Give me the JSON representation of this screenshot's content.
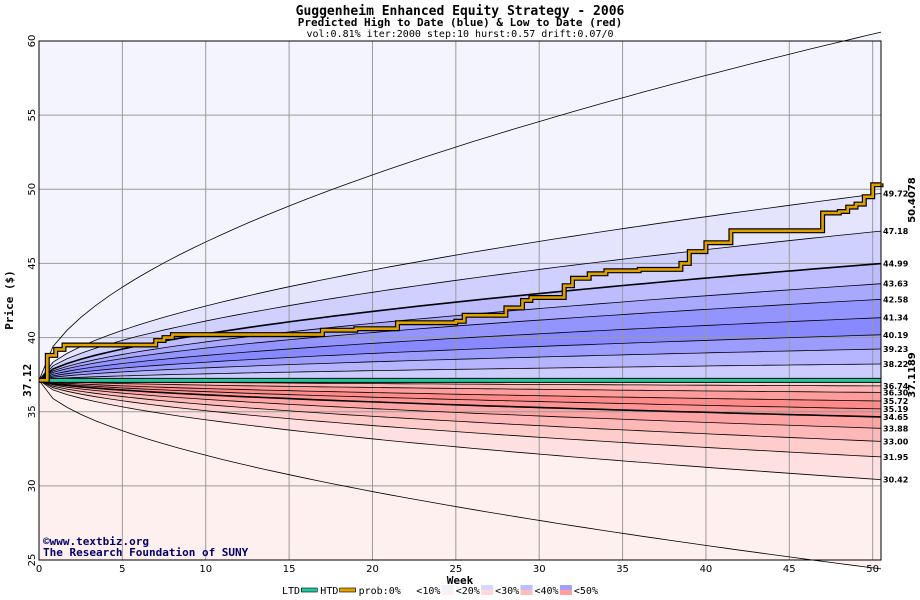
{
  "chart_data": {
    "type": "area",
    "title": "Guggenheim Enhanced Equity Strategy - 2006",
    "subtitle": "Predicted High to Date (blue) &  Low to Date (red)",
    "params": "vol:0.81% iter:2000 step:10 hurst:0.57 drift:0.07/0",
    "xlabel": "Week",
    "ylabel": "Price ($)",
    "xlim": [
      0,
      50.5
    ],
    "ylim": [
      25,
      60
    ],
    "x_ticks": [
      "0",
      "5",
      "10",
      "15",
      "20",
      "25",
      "30",
      "35",
      "40",
      "45",
      "50"
    ],
    "y_ticks": [
      "25",
      "30",
      "35",
      "40",
      "45",
      "50",
      "55",
      "60"
    ],
    "start_price": 37.12,
    "start_label": "37.12",
    "grid": true,
    "high_bands": [
      38.22,
      39.23,
      40.19,
      41.34,
      42.58,
      43.63,
      44.99,
      47.18,
      49.72
    ],
    "high_band_labels": [
      "38.22",
      "39.23",
      "40.19",
      "41.34",
      "42.58",
      "43.63",
      "44.99",
      "47.18",
      "49.72"
    ],
    "low_bands": [
      36.74,
      36.3,
      35.72,
      35.19,
      34.65,
      33.88,
      33.0,
      31.95,
      30.42
    ],
    "low_band_labels": [
      "36.74",
      "36.30",
      "35.72",
      "35.19",
      "34.65",
      "33.88",
      "33.00",
      "31.95",
      "30.42"
    ],
    "outer_high_end": 60.6,
    "outer_low_end": 24.4,
    "bold_high_index": 6,
    "bold_low_index": 4,
    "htd_series": {
      "name": "HTD",
      "color": "#e0a000",
      "x": [
        0,
        0.5,
        1,
        1.5,
        2,
        4,
        6,
        7,
        7.5,
        8,
        10,
        12,
        15,
        16.5,
        17,
        19,
        21,
        21.5,
        23,
        25,
        25.5,
        27,
        28,
        29,
        29.5,
        31,
        31.5,
        32,
        33,
        34,
        35,
        36,
        37,
        38,
        38.5,
        39,
        40,
        41,
        41.5,
        43,
        46.5,
        47,
        48,
        48.5,
        49,
        49.5,
        50,
        50.5
      ],
      "y": [
        37.12,
        38.8,
        39.2,
        39.5,
        39.5,
        39.5,
        39.5,
        39.8,
        40.0,
        40.2,
        40.2,
        40.2,
        40.2,
        40.2,
        40.5,
        40.6,
        40.6,
        41.0,
        41.0,
        41.1,
        41.5,
        41.5,
        42.0,
        42.5,
        42.7,
        42.7,
        43.5,
        44.0,
        44.3,
        44.5,
        44.5,
        44.6,
        44.6,
        44.6,
        45.0,
        45.8,
        46.4,
        46.4,
        47.2,
        47.2,
        47.2,
        48.4,
        48.5,
        48.8,
        49.0,
        49.5,
        50.3,
        50.41
      ],
      "end_label": "50.4078"
    },
    "ltd_series": {
      "name": "LTD",
      "color": "#20c8a0",
      "x": [
        0,
        0.5,
        1,
        50.5
      ],
      "y": [
        37.12,
        37.11,
        37.11,
        37.11
      ],
      "end_label": "37.1189"
    },
    "credit": [
      "©www.textbiz.org",
      "The Research Foundation of SUNY"
    ],
    "legend": {
      "items": [
        "LTD",
        "HTD",
        "prob:0%",
        "<10%",
        "<20%",
        "<30%",
        "<40%",
        "<50%"
      ],
      "colors": {
        "ltd": "#20c8a0",
        "htd": "#e0a000",
        "p0": "#ffffff",
        "p10_high": "#f0f0ff",
        "p10_low": "#fff0f0",
        "p20_high": "#d8d8ff",
        "p20_low": "#ffd8d8",
        "p30_high": "#bcbcff",
        "p30_low": "#ffbcbc",
        "p40_high": "#a0a0ff",
        "p40_low": "#ffa0a0",
        "p50_high": "#8080ff",
        "p50_low": "#ff8080"
      }
    },
    "band_colors_high": [
      "#f4f4ff",
      "#e4e4ff",
      "#d0d0ff",
      "#bcbcff",
      "#a8a8ff",
      "#9494ff",
      "#8888ff",
      "#9c9cff",
      "#b4b4ff",
      "#ccccff"
    ],
    "band_colors_low": [
      "#fff0f0",
      "#ffe0e0",
      "#ffcccc",
      "#ffb8b8",
      "#ffa4a4",
      "#ff9494",
      "#ff8a8a",
      "#ff9c9c",
      "#ffb4b4",
      "#ffcccc"
    ]
  }
}
